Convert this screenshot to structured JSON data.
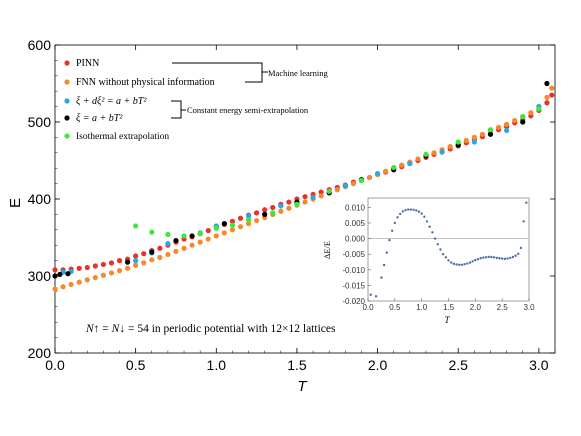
{
  "chart_data": {
    "type": "scatter",
    "title": "",
    "xlabel": "T",
    "ylabel": "E",
    "xlim": [
      0,
      3.1
    ],
    "ylim": [
      200,
      600
    ],
    "xticks": [
      "0.0",
      "0.5",
      "1.0",
      "1.5",
      "2.0",
      "2.5",
      "3.0"
    ],
    "yticks": [
      "200",
      "300",
      "400",
      "500",
      "600"
    ],
    "grid": false,
    "legend_position": "top-left",
    "legend": {
      "entries": [
        {
          "label": "PINN",
          "color": "#e8312a"
        },
        {
          "label": "FNN without physical information",
          "color": "#f5892b"
        },
        {
          "label": "ξ + dξ² = a + bT²",
          "color": "#2aa7e6"
        },
        {
          "label": "ξ = a + bT²",
          "color": "#000000"
        },
        {
          "label": "Isothermal extrapolation",
          "color": "#3ee83b"
        }
      ],
      "group_ml": "Machine learning",
      "group_ce": "Constant energy semi-extrapolation"
    },
    "annotation": {
      "n_up": "N↑",
      "n_down": "N↓",
      "value": "54",
      "rest": "in periodic potential with 12×12 lattices"
    },
    "series": [
      {
        "name": "PINN",
        "color": "#e8312a",
        "x": [
          0.0,
          0.05,
          0.1,
          0.15,
          0.2,
          0.25,
          0.3,
          0.35,
          0.4,
          0.45,
          0.5,
          0.55,
          0.6,
          0.65,
          0.7,
          0.75,
          0.8,
          0.85,
          0.9,
          0.95,
          1.0,
          1.05,
          1.1,
          1.15,
          1.2,
          1.25,
          1.3,
          1.35,
          1.4,
          1.45,
          1.5,
          1.55,
          1.6,
          1.65,
          1.7,
          1.75,
          1.8,
          1.85,
          1.9,
          1.95,
          2.0,
          2.05,
          2.1,
          2.15,
          2.2,
          2.25,
          2.3,
          2.35,
          2.4,
          2.45,
          2.5,
          2.55,
          2.6,
          2.65,
          2.7,
          2.75,
          2.8,
          2.85,
          2.9,
          2.95,
          3.0,
          3.05,
          3.08
        ],
        "y": [
          308,
          308,
          309,
          310,
          311,
          313,
          315,
          317,
          320,
          322,
          326,
          329,
          333,
          336,
          340,
          344,
          348,
          351,
          355,
          359,
          364,
          367,
          371,
          375,
          379,
          382,
          386,
          389,
          393,
          396,
          400,
          403,
          406,
          409,
          412,
          415,
          418,
          422,
          425,
          428,
          432,
          435,
          439,
          442,
          446,
          450,
          454,
          458,
          461,
          465,
          469,
          473,
          477,
          481,
          485,
          490,
          494,
          499,
          503,
          508,
          515,
          525,
          535
        ]
      },
      {
        "name": "FNN without physical information",
        "color": "#f5892b",
        "x": [
          0.0,
          0.05,
          0.1,
          0.15,
          0.2,
          0.25,
          0.3,
          0.35,
          0.4,
          0.45,
          0.5,
          0.55,
          0.6,
          0.65,
          0.7,
          0.75,
          0.8,
          0.85,
          0.9,
          0.95,
          1.0,
          1.05,
          1.1,
          1.15,
          1.2,
          1.25,
          1.3,
          1.35,
          1.4,
          1.45,
          1.5,
          1.55,
          1.6,
          1.65,
          1.7,
          1.75,
          1.8,
          1.85,
          1.9,
          1.95,
          2.0,
          2.05,
          2.1,
          2.15,
          2.2,
          2.25,
          2.3,
          2.35,
          2.4,
          2.45,
          2.5,
          2.55,
          2.6,
          2.65,
          2.7,
          2.75,
          2.8,
          2.85,
          2.9,
          2.95,
          3.0,
          3.05,
          3.08
        ],
        "y": [
          283,
          286,
          289,
          292,
          295,
          298,
          301,
          304,
          307,
          310,
          314,
          317,
          321,
          324,
          328,
          332,
          336,
          340,
          344,
          348,
          352,
          356,
          360,
          364,
          368,
          372,
          376,
          380,
          384,
          388,
          392,
          396,
          400,
          404,
          408,
          412,
          416,
          420,
          424,
          428,
          432,
          436,
          440,
          444,
          448,
          452,
          456,
          460,
          464,
          468,
          472,
          476,
          480,
          484,
          488,
          493,
          497,
          502,
          507,
          512,
          520,
          532,
          544
        ]
      },
      {
        "name": "ξ + dξ² = a + bT²",
        "color": "#2aa7e6",
        "x": [
          0.05,
          0.1,
          0.5,
          0.6,
          0.7,
          0.9,
          1.0,
          1.2,
          1.4,
          1.6,
          1.8,
          2.0,
          2.2,
          2.4,
          2.6,
          2.8,
          3.0
        ],
        "y": [
          305,
          306,
          320,
          330,
          342,
          356,
          365,
          378,
          391,
          402,
          417,
          433,
          446,
          461,
          474,
          489,
          520
        ]
      },
      {
        "name": "ξ = a + bT²",
        "color": "#000000",
        "x": [
          0.0,
          0.03,
          0.08,
          0.45,
          0.6,
          0.75,
          0.85,
          1.05,
          1.3,
          1.5,
          1.7,
          1.9,
          2.1,
          2.3,
          2.5,
          2.7,
          2.9,
          3.05
        ],
        "y": [
          300,
          302,
          303,
          318,
          331,
          346,
          352,
          368,
          380,
          396,
          408,
          425,
          438,
          456,
          470,
          484,
          500,
          550
        ]
      },
      {
        "name": "Isothermal extrapolation",
        "color": "#3ee83b",
        "x": [
          0.5,
          0.6,
          0.7,
          0.8,
          0.9,
          1.0,
          1.1,
          1.2,
          1.35,
          1.5,
          1.7,
          1.9,
          2.1,
          2.3,
          2.5,
          2.7,
          2.9,
          3.0
        ],
        "y": [
          365,
          357,
          354,
          352,
          355,
          362,
          366,
          373,
          382,
          393,
          410,
          424,
          441,
          458,
          474,
          490,
          507,
          517
        ]
      }
    ],
    "inset": {
      "type": "scatter",
      "xlabel": "T",
      "ylabel": "ΔE/E",
      "xlim": [
        0,
        3.0
      ],
      "ylim": [
        -0.02,
        0.013
      ],
      "xticks": [
        "0.0",
        "0.5",
        "1.0",
        "1.5",
        "2.0",
        "2.5",
        "3.0"
      ],
      "yticks": [
        "-0.020",
        "-0.015",
        "-0.010",
        "-0.005",
        "0.000",
        "0.005",
        "0.010"
      ],
      "color": "#4a6fa5",
      "x": [
        0.05,
        0.15,
        0.25,
        0.3,
        0.35,
        0.4,
        0.45,
        0.5,
        0.55,
        0.6,
        0.65,
        0.7,
        0.75,
        0.8,
        0.85,
        0.9,
        0.95,
        1.0,
        1.05,
        1.1,
        1.15,
        1.2,
        1.25,
        1.3,
        1.35,
        1.4,
        1.45,
        1.5,
        1.55,
        1.6,
        1.65,
        1.7,
        1.75,
        1.8,
        1.85,
        1.9,
        1.95,
        2.0,
        2.05,
        2.1,
        2.15,
        2.2,
        2.25,
        2.3,
        2.35,
        2.4,
        2.45,
        2.5,
        2.55,
        2.6,
        2.65,
        2.7,
        2.75,
        2.8,
        2.85,
        2.9,
        2.95
      ],
      "y": [
        -0.018,
        -0.0185,
        -0.0125,
        -0.0085,
        -0.0045,
        -0.0005,
        0.0025,
        0.005,
        0.0068,
        0.0079,
        0.0087,
        0.0091,
        0.0093,
        0.0093,
        0.0092,
        0.009,
        0.0086,
        0.008,
        0.007,
        0.0055,
        0.0038,
        0.002,
        0.0,
        -0.0018,
        -0.0035,
        -0.005,
        -0.006,
        -0.007,
        -0.0077,
        -0.0081,
        -0.0083,
        -0.0084,
        -0.0084,
        -0.0082,
        -0.008,
        -0.0077,
        -0.0073,
        -0.0069,
        -0.0066,
        -0.0063,
        -0.0061,
        -0.006,
        -0.0059,
        -0.0059,
        -0.006,
        -0.0062,
        -0.0063,
        -0.0064,
        -0.0065,
        -0.0064,
        -0.0062,
        -0.0059,
        -0.0055,
        -0.0049,
        -0.003,
        0.0055,
        0.0115
      ]
    }
  }
}
